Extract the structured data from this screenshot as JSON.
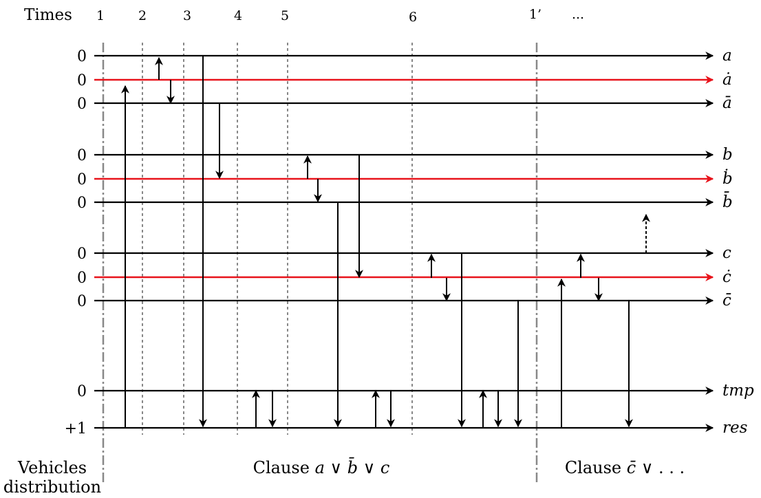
{
  "times_label": "Times",
  "times": [
    "1",
    "2",
    "3",
    "4",
    "5",
    "6",
    "1’",
    "..."
  ],
  "lines": [
    {
      "name": "a",
      "initial": "0",
      "color": "#000000"
    },
    {
      "name": "ȧ",
      "initial": "0",
      "color": "#e8131b"
    },
    {
      "name": "ā",
      "initial": "0",
      "color": "#000000"
    },
    {
      "name": "b",
      "initial": "0",
      "color": "#000000"
    },
    {
      "name": "ḃ",
      "initial": "0",
      "color": "#e8131b"
    },
    {
      "name": "b̄",
      "initial": "0",
      "color": "#000000"
    },
    {
      "name": "c",
      "initial": "0",
      "color": "#000000"
    },
    {
      "name": "ċ",
      "initial": "0",
      "color": "#e8131b"
    },
    {
      "name": "c̄",
      "initial": "0",
      "color": "#000000"
    },
    {
      "name": "tmp",
      "initial": "0",
      "color": "#000000"
    },
    {
      "name": "res",
      "initial": "+1",
      "color": "#000000"
    }
  ],
  "bottom": {
    "vehicles_line1": "Vehicles",
    "vehicles_line2": "distribution",
    "clause1_prefix": "Clause ",
    "clause1_a": "a",
    "clause1_or1": " ∨ ",
    "clause1_b": "b̄",
    "clause1_or2": " ∨ ",
    "clause1_c": "c",
    "clause2_prefix": "Clause ",
    "clause2_c": "c̄",
    "clause2_rest": " ∨ . . ."
  },
  "colors": {
    "highlight": "#e8131b",
    "ink": "#000000",
    "separator": "#888888"
  }
}
